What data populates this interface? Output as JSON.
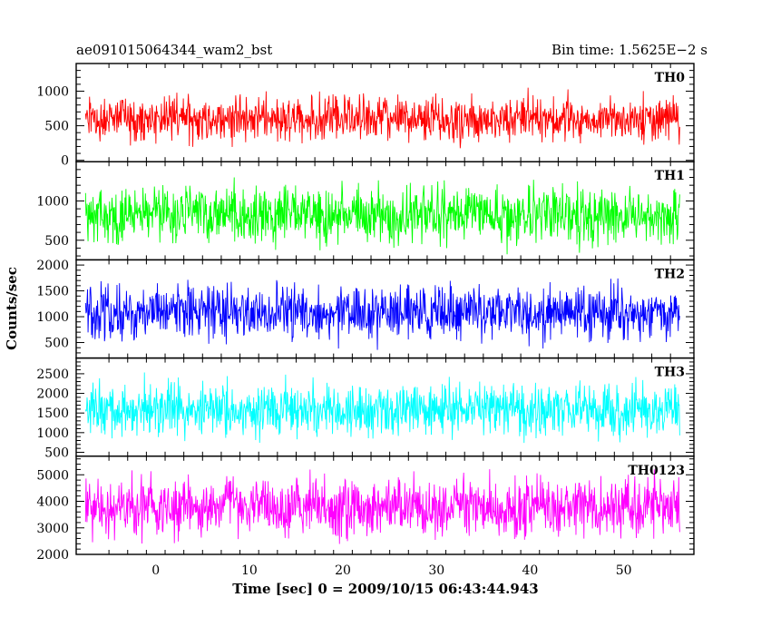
{
  "chart_data": {
    "type": "line",
    "title_left": "ae091015064344_wam2_bst",
    "title_right": "Bin time: 1.5625E−2 s",
    "xlabel": "Time [sec] 0 = 2009/10/15 06:43:44.943",
    "ylabel": "Counts/sec",
    "xlim": [
      -8.5,
      57.5
    ],
    "x_data_range": [
      -7.5,
      56.0
    ],
    "x_ticks": [
      0,
      10,
      20,
      30,
      40,
      50
    ],
    "x_tick_labels": [
      "0",
      "10",
      "20",
      "30",
      "40",
      "50"
    ],
    "panels": [
      {
        "name": "TH0",
        "color": "#ff0000",
        "ylim": [
          -20,
          1400
        ],
        "y_ticks": [
          0,
          500,
          1000
        ],
        "y_tick_labels": [
          "0",
          "500",
          "1000"
        ],
        "center": 600,
        "spread": 380,
        "min_clip": 100,
        "max_clip": 1400
      },
      {
        "name": "TH1",
        "color": "#00ff00",
        "ylim": [
          250,
          1500
        ],
        "y_ticks": [
          500,
          1000
        ],
        "y_tick_labels": [
          "500",
          "1000"
        ],
        "center": 820,
        "spread": 420,
        "min_clip": 300,
        "max_clip": 1500
      },
      {
        "name": "TH2",
        "color": "#0000ff",
        "ylim": [
          200,
          2100
        ],
        "y_ticks": [
          500,
          1000,
          1500,
          2000
        ],
        "y_tick_labels": [
          "500",
          "1000",
          "1500",
          "2000"
        ],
        "center": 1080,
        "spread": 620,
        "min_clip": 250,
        "max_clip": 2100
      },
      {
        "name": "TH3",
        "color": "#00ffff",
        "ylim": [
          400,
          2900
        ],
        "y_ticks": [
          500,
          1000,
          1500,
          2000,
          2500
        ],
        "y_tick_labels": [
          "500",
          "1000",
          "1500",
          "2000",
          "2500"
        ],
        "center": 1600,
        "spread": 800,
        "min_clip": 500,
        "max_clip": 2800
      },
      {
        "name": "TH0123",
        "color": "#ff00ff",
        "ylim": [
          2000,
          5700
        ],
        "y_ticks": [
          2000,
          3000,
          4000,
          5000
        ],
        "y_tick_labels": [
          "2000",
          "3000",
          "4000",
          "5000"
        ],
        "center": 3800,
        "spread": 1300,
        "min_clip": 2050,
        "max_clip": 5600
      }
    ]
  }
}
